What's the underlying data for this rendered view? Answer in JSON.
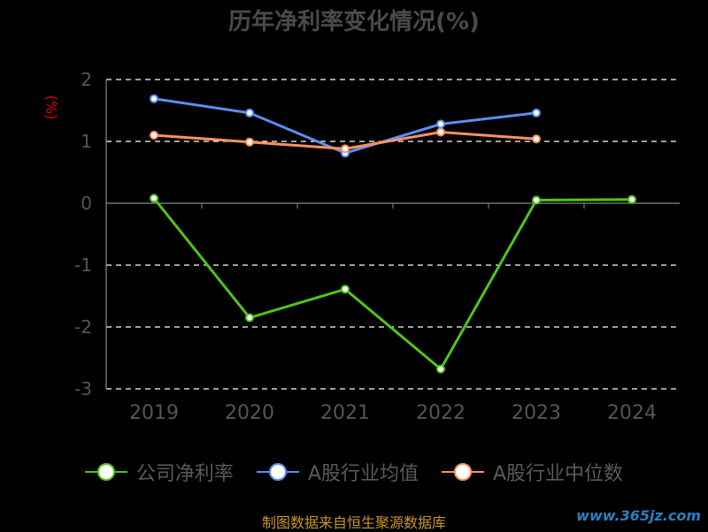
{
  "chart_data": {
    "type": "line",
    "title": "历年净利率变化情况(%)",
    "unit_label": "(%)",
    "categories": [
      "2019",
      "2020",
      "2021",
      "2022",
      "2023",
      "2024"
    ],
    "ylim": [
      -3,
      2
    ],
    "yticks": [
      "2",
      "1",
      "0",
      "-1",
      "-2",
      "-3"
    ],
    "grid": true,
    "legend_position": "bottom",
    "series": [
      {
        "name": "公司净利率",
        "color": "#52c41a",
        "values": [
          0.08,
          -1.85,
          -1.39,
          -2.68,
          0.05,
          0.06
        ]
      },
      {
        "name": "A股行业均值",
        "color": "#5b8ff9",
        "values": [
          1.69,
          1.46,
          0.81,
          1.28,
          1.46,
          null
        ]
      },
      {
        "name": "A股行业中位数",
        "color": "#ff9260",
        "values": [
          1.1,
          0.99,
          0.88,
          1.15,
          1.04,
          null
        ]
      }
    ]
  },
  "footer": {
    "source": "制图数据来自恒生聚源数据库",
    "watermark": "www.365jz.com"
  }
}
